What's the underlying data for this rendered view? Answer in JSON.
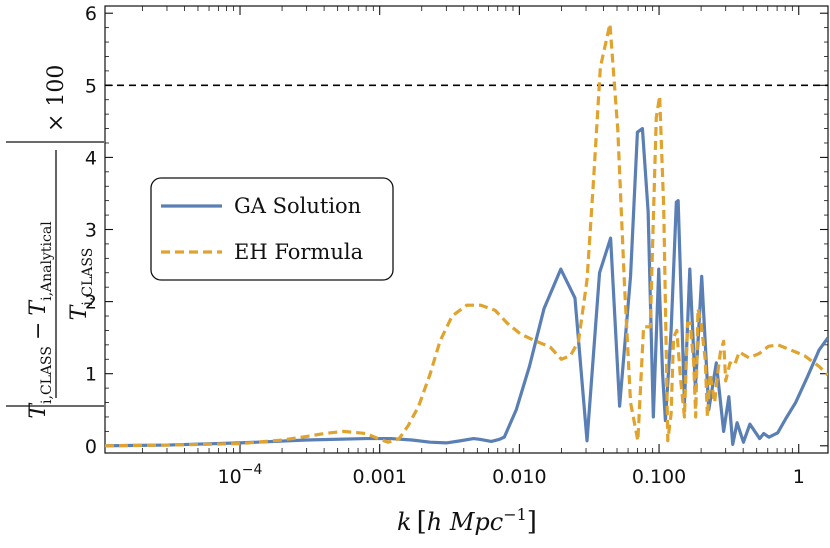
{
  "chart_data": {
    "type": "line",
    "x_scale": "log",
    "xlim": [
      1.08e-05,
      1.62
    ],
    "ylim": [
      -0.1,
      6.1
    ],
    "xlabel": {
      "main": "k",
      "bracket_text": "h Mpc",
      "exponent": "−1"
    },
    "ylabel": {
      "numerator_main": "T",
      "numerator_sub1": "i,CLASS",
      "minus": "−",
      "numerator_sub2": "i,Analytical",
      "denominator_main": "T",
      "denominator_sub": "i,CLASS",
      "multiplier": "× 100"
    },
    "x_ticks": [
      {
        "value": 0.0001,
        "base": "10",
        "exp": "−4"
      },
      {
        "value": 0.001,
        "label": "0.001"
      },
      {
        "value": 0.01,
        "label": "0.010"
      },
      {
        "value": 0.1,
        "label": "0.100"
      },
      {
        "value": 1,
        "label": "1"
      }
    ],
    "y_ticks": [
      {
        "value": 0,
        "label": "0"
      },
      {
        "value": 1,
        "label": "1"
      },
      {
        "value": 2,
        "label": "2"
      },
      {
        "value": 3,
        "label": "3"
      },
      {
        "value": 4,
        "label": "4"
      },
      {
        "value": 5,
        "label": "5"
      },
      {
        "value": 6,
        "label": "6"
      }
    ],
    "reference_line": {
      "y": 5,
      "style": "dashed",
      "color": "#000000"
    },
    "legend": {
      "placement": "middle-left",
      "items": [
        {
          "label": "GA Solution",
          "style": "solid",
          "color": "#5a7fb5"
        },
        {
          "label": "EH Formula",
          "style": "dashed",
          "color": "#e0a32e"
        }
      ]
    },
    "series": [
      {
        "name": "GA Solution",
        "color": "#5a7fb5",
        "style": "solid",
        "points": [
          [
            1.08e-05,
            0.0
          ],
          [
            3e-05,
            0.01
          ],
          [
            0.0001,
            0.04
          ],
          [
            0.0003,
            0.08
          ],
          [
            0.0008,
            0.1
          ],
          [
            0.0012,
            0.1
          ],
          [
            0.0017,
            0.08
          ],
          [
            0.0023,
            0.05
          ],
          [
            0.003,
            0.04
          ],
          [
            0.0038,
            0.07
          ],
          [
            0.0047,
            0.1
          ],
          [
            0.0052,
            0.09
          ],
          [
            0.0063,
            0.06
          ],
          [
            0.0072,
            0.09
          ],
          [
            0.0078,
            0.12
          ],
          [
            0.0095,
            0.5
          ],
          [
            0.0118,
            1.1
          ],
          [
            0.015,
            1.9
          ],
          [
            0.0198,
            2.45
          ],
          [
            0.025,
            2.05
          ],
          [
            0.0305,
            0.07
          ],
          [
            0.0375,
            2.4
          ],
          [
            0.045,
            2.88
          ],
          [
            0.0522,
            0.55
          ],
          [
            0.0625,
            2.35
          ],
          [
            0.07,
            4.35
          ],
          [
            0.076,
            4.4
          ],
          [
            0.0835,
            3.25
          ],
          [
            0.091,
            0.4
          ],
          [
            0.0995,
            2.45
          ],
          [
            0.106,
            1.0
          ],
          [
            0.111,
            0.35
          ],
          [
            0.122,
            1.6
          ],
          [
            0.133,
            3.38
          ],
          [
            0.137,
            3.4
          ],
          [
            0.152,
            0.6
          ],
          [
            0.166,
            2.45
          ],
          [
            0.182,
            0.8
          ],
          [
            0.202,
            2.35
          ],
          [
            0.227,
            0.5
          ],
          [
            0.257,
            1.15
          ],
          [
            0.29,
            0.2
          ],
          [
            0.316,
            0.68
          ],
          [
            0.337,
            0.02
          ],
          [
            0.362,
            0.32
          ],
          [
            0.402,
            0.05
          ],
          [
            0.447,
            0.3
          ],
          [
            0.525,
            0.1
          ],
          [
            0.562,
            0.17
          ],
          [
            0.612,
            0.12
          ],
          [
            0.707,
            0.18
          ],
          [
            0.81,
            0.38
          ],
          [
            0.95,
            0.6
          ],
          [
            1.15,
            0.95
          ],
          [
            1.4,
            1.33
          ],
          [
            1.62,
            1.5
          ]
        ]
      },
      {
        "name": "EH Formula",
        "color": "#e0a32e",
        "style": "dashed",
        "points": [
          [
            1.08e-05,
            0.0
          ],
          [
            3e-05,
            0.01
          ],
          [
            0.0001,
            0.03
          ],
          [
            0.0002,
            0.08
          ],
          [
            0.0003,
            0.13
          ],
          [
            0.0004,
            0.17
          ],
          [
            0.00055,
            0.2
          ],
          [
            0.0008,
            0.17
          ],
          [
            0.001,
            0.09
          ],
          [
            0.00115,
            0.05
          ],
          [
            0.00138,
            0.1
          ],
          [
            0.0016,
            0.28
          ],
          [
            0.0019,
            0.55
          ],
          [
            0.0023,
            1.0
          ],
          [
            0.0027,
            1.45
          ],
          [
            0.0033,
            1.8
          ],
          [
            0.0042,
            1.95
          ],
          [
            0.0053,
            1.95
          ],
          [
            0.0067,
            1.88
          ],
          [
            0.0082,
            1.7
          ],
          [
            0.0102,
            1.55
          ],
          [
            0.0132,
            1.45
          ],
          [
            0.0166,
            1.37
          ],
          [
            0.02,
            1.2
          ],
          [
            0.0232,
            1.25
          ],
          [
            0.0265,
            1.45
          ],
          [
            0.0305,
            2.3
          ],
          [
            0.034,
            3.7
          ],
          [
            0.038,
            5.25
          ],
          [
            0.0445,
            5.85
          ],
          [
            0.0506,
            4.4
          ],
          [
            0.0565,
            2.25
          ],
          [
            0.0625,
            0.6
          ],
          [
            0.0705,
            0.07
          ],
          [
            0.0775,
            1.65
          ],
          [
            0.0865,
            1.65
          ],
          [
            0.0955,
            4.55
          ],
          [
            0.101,
            4.85
          ],
          [
            0.108,
            3.3
          ],
          [
            0.1155,
            0.07
          ],
          [
            0.122,
            0.45
          ],
          [
            0.127,
            1.5
          ],
          [
            0.134,
            1.6
          ],
          [
            0.143,
            0.9
          ],
          [
            0.152,
            0.4
          ],
          [
            0.16,
            1.7
          ],
          [
            0.167,
            1.7
          ],
          [
            0.177,
            1.15
          ],
          [
            0.183,
            0.4
          ],
          [
            0.19,
            1.9
          ],
          [
            0.2,
            1.7
          ],
          [
            0.214,
            1.2
          ],
          [
            0.222,
            0.4
          ],
          [
            0.232,
            1.0
          ],
          [
            0.25,
            0.6
          ],
          [
            0.262,
            0.98
          ],
          [
            0.275,
            1.3
          ],
          [
            0.29,
            1.45
          ],
          [
            0.3,
            0.9
          ],
          [
            0.322,
            1.15
          ],
          [
            0.347,
            1.12
          ],
          [
            0.375,
            1.3
          ],
          [
            0.44,
            1.22
          ],
          [
            0.522,
            1.28
          ],
          [
            0.608,
            1.38
          ],
          [
            0.71,
            1.4
          ],
          [
            0.9,
            1.32
          ],
          [
            1.1,
            1.25
          ],
          [
            1.4,
            1.1
          ],
          [
            1.62,
            0.98
          ]
        ]
      }
    ]
  }
}
